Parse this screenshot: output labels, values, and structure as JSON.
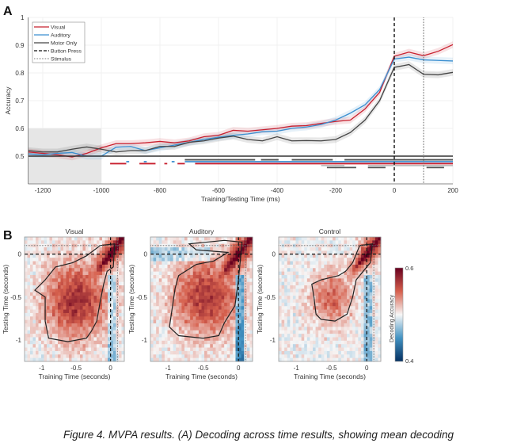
{
  "panel_a": {
    "label": "A",
    "chart_data": {
      "type": "line",
      "xlabel": "Training/Testing Time (ms)",
      "ylabel": "Accuracy",
      "xlim": [
        -1250,
        200
      ],
      "ylim": [
        0.4,
        1.0
      ],
      "xticks": [
        -1200,
        -1000,
        -800,
        -600,
        -400,
        -200,
        0,
        200
      ],
      "yticks": [
        0.5,
        0.6,
        0.7,
        0.8,
        0.9,
        1
      ],
      "ytick_labels": [
        "0.5",
        "0.6",
        "0.7",
        "0.8",
        "0.9",
        "1"
      ],
      "grid": true,
      "legend_position": "top-left",
      "chance_level": 0.5,
      "baseline_shaded": {
        "x": [
          -1250,
          -1000
        ],
        "y": [
          0.4,
          0.6
        ],
        "color": "#e6e6e6"
      },
      "vlines": [
        {
          "name": "Button Press",
          "x": 0,
          "style": "dashed"
        },
        {
          "name": "Stimulus",
          "x": 100,
          "style": "dotted"
        }
      ],
      "x": [
        -1250,
        -1200,
        -1150,
        -1100,
        -1050,
        -1000,
        -950,
        -900,
        -850,
        -800,
        -750,
        -700,
        -650,
        -600,
        -550,
        -500,
        -450,
        -400,
        -350,
        -300,
        -250,
        -200,
        -150,
        -100,
        -50,
        0,
        50,
        100,
        150,
        200
      ],
      "series": [
        {
          "name": "Visual",
          "color": "#c8202f",
          "values": [
            0.515,
            0.51,
            0.505,
            0.497,
            0.51,
            0.53,
            0.545,
            0.545,
            0.548,
            0.553,
            0.548,
            0.555,
            0.57,
            0.575,
            0.593,
            0.59,
            0.595,
            0.6,
            0.608,
            0.61,
            0.618,
            0.625,
            0.63,
            0.67,
            0.73,
            0.86,
            0.875,
            0.862,
            0.878,
            0.902
          ]
        },
        {
          "name": "Auditory",
          "color": "#3b8fd0",
          "values": [
            0.508,
            0.505,
            0.51,
            0.513,
            0.5,
            0.5,
            0.532,
            0.535,
            0.52,
            0.53,
            0.54,
            0.55,
            0.56,
            0.568,
            0.575,
            0.58,
            0.588,
            0.59,
            0.6,
            0.605,
            0.614,
            0.63,
            0.655,
            0.685,
            0.74,
            0.85,
            0.857,
            0.847,
            0.845,
            0.843
          ]
        },
        {
          "name": "Motor Only",
          "color": "#444444",
          "values": [
            0.52,
            0.515,
            0.515,
            0.525,
            0.533,
            0.525,
            0.515,
            0.52,
            0.52,
            0.535,
            0.535,
            0.55,
            0.555,
            0.565,
            0.572,
            0.56,
            0.555,
            0.57,
            0.555,
            0.556,
            0.555,
            0.56,
            0.585,
            0.63,
            0.7,
            0.82,
            0.83,
            0.795,
            0.793,
            0.802
          ]
        }
      ],
      "legend": [
        {
          "label": "Visual",
          "style": "solid",
          "color": "#c8202f"
        },
        {
          "label": "Auditory",
          "style": "solid",
          "color": "#3b8fd0"
        },
        {
          "label": "Motor Only",
          "style": "solid",
          "color": "#444444"
        },
        {
          "label": "Button Press",
          "style": "dashed",
          "color": "#111111"
        },
        {
          "label": "Stimulus",
          "style": "dotted",
          "color": "#777777"
        }
      ],
      "significance_bars": [
        {
          "color": "#555555",
          "level": 0.487,
          "segments": [
            [
              -715,
              -475
            ],
            [
              -455,
              -395
            ],
            [
              -350,
              -210
            ],
            [
              -170,
              200
            ]
          ]
        },
        {
          "color": "#3b8fd0",
          "level": 0.48,
          "segments": [
            [
              -915,
              -905
            ],
            [
              -855,
              -845
            ],
            [
              -760,
              -750
            ],
            [
              -715,
              200
            ]
          ]
        },
        {
          "color": "#c8202f",
          "level": 0.473,
          "segments": [
            [
              -970,
              -915
            ],
            [
              -870,
              -815
            ],
            [
              -785,
              -775
            ],
            [
              -740,
              -715
            ],
            [
              -680,
              200
            ]
          ]
        },
        {
          "color": "#bbbbbb",
          "level": 0.466,
          "segments": [
            [
              -250,
              -170
            ],
            [
              -90,
              200
            ]
          ]
        },
        {
          "color": "#555555",
          "level": 0.459,
          "segments": [
            [
              -230,
              -130
            ],
            [
              -90,
              -30
            ],
            [
              110,
              170
            ]
          ]
        }
      ]
    }
  },
  "panel_b": {
    "label": "B",
    "chart_data": [
      {
        "type": "heatmap",
        "title": "Visual",
        "xlabel": "Training Time (seconds)",
        "ylabel": "Testing Time (seconds)",
        "xlim": [
          -1.25,
          0.2
        ],
        "ylim": [
          -1.25,
          0.2
        ],
        "xticks": [
          -1,
          -0.5,
          0
        ],
        "xtick_labels": [
          "-1",
          "-0.5",
          "0"
        ],
        "yticks": [
          0,
          -0.5,
          -1
        ],
        "ytick_labels": [
          "0",
          "-0.5",
          "-1"
        ],
        "blob": {
          "center": [
            -0.5,
            -0.55
          ],
          "radius": [
            0.42,
            0.42
          ],
          "strength": 0.075
        },
        "contour": [
          [
            -1.1,
            -0.42
          ],
          [
            -0.95,
            -0.3
          ],
          [
            -0.8,
            -0.15
          ],
          [
            -0.55,
            -0.1
          ],
          [
            -0.35,
            -0.02
          ],
          [
            -0.15,
            0.1
          ],
          [
            0.06,
            0.12
          ],
          [
            0.04,
            -0.15
          ],
          [
            -0.05,
            -0.2
          ],
          [
            -0.1,
            -0.35
          ],
          [
            -0.15,
            -0.55
          ],
          [
            -0.2,
            -0.78
          ],
          [
            -0.28,
            -0.9
          ],
          [
            -0.35,
            -0.98
          ],
          [
            -0.62,
            -1.02
          ],
          [
            -0.9,
            -0.98
          ],
          [
            -0.95,
            -0.78
          ],
          [
            -0.95,
            -0.5
          ]
        ]
      },
      {
        "type": "heatmap",
        "title": "Auditory",
        "xlabel": "Training Time (seconds)",
        "ylabel": "Testing Time (seconds)",
        "xlim": [
          -1.25,
          0.2
        ],
        "ylim": [
          -1.25,
          0.2
        ],
        "xticks": [
          -1,
          -0.5,
          0
        ],
        "xtick_labels": [
          "-1",
          "-0.5",
          "0"
        ],
        "yticks": [
          0,
          -0.5,
          -1
        ],
        "ytick_labels": [
          "0",
          "-0.5",
          "-1"
        ],
        "blob": {
          "center": [
            -0.45,
            -0.5
          ],
          "radius": [
            0.45,
            0.42
          ],
          "strength": 0.07
        },
        "contour": [
          [
            -0.98,
            -0.85
          ],
          [
            -0.9,
            -0.4
          ],
          [
            -0.85,
            -0.25
          ],
          [
            -0.6,
            -0.12
          ],
          [
            -0.35,
            -0.08
          ],
          [
            -0.15,
            0.02
          ],
          [
            -0.6,
            0.05
          ],
          [
            -0.7,
            0.12
          ],
          [
            -0.2,
            0.16
          ],
          [
            0.05,
            0.14
          ],
          [
            0.0,
            -0.3
          ],
          [
            -0.05,
            -0.6
          ],
          [
            -0.2,
            -0.8
          ],
          [
            -0.28,
            -0.95
          ],
          [
            -0.5,
            -0.98
          ],
          [
            -0.85,
            -0.95
          ]
        ]
      },
      {
        "type": "heatmap",
        "title": "Control",
        "xlabel": "Training Time (seconds)",
        "ylabel": "Testing Time (seconds)",
        "xlim": [
          -1.25,
          0.2
        ],
        "ylim": [
          -1.25,
          0.2
        ],
        "xticks": [
          -1,
          -0.5,
          0
        ],
        "xtick_labels": [
          "-1",
          "-0.5",
          "0"
        ],
        "yticks": [
          0,
          -0.5,
          -1
        ],
        "ytick_labels": [
          "0",
          "-0.5",
          "-1"
        ],
        "blob": {
          "center": [
            -0.5,
            -0.5
          ],
          "radius": [
            0.28,
            0.28
          ],
          "strength": 0.05
        },
        "contour": [
          [
            -0.78,
            -0.35
          ],
          [
            -0.65,
            -0.3
          ],
          [
            -0.4,
            -0.25
          ],
          [
            -0.3,
            -0.2
          ],
          [
            -0.2,
            -0.1
          ],
          [
            -0.1,
            0.1
          ],
          [
            0.08,
            0.12
          ],
          [
            0.05,
            -0.1
          ],
          [
            -0.05,
            -0.2
          ],
          [
            -0.15,
            -0.3
          ],
          [
            -0.2,
            -0.5
          ],
          [
            -0.28,
            -0.7
          ],
          [
            -0.45,
            -0.78
          ],
          [
            -0.65,
            -0.76
          ],
          [
            -0.72,
            -0.7
          ],
          [
            -0.75,
            -0.5
          ]
        ]
      }
    ],
    "colorbar": {
      "label": "Decoding Accuracy",
      "min": 0.4,
      "max": 0.6,
      "min_label": "0.4",
      "max_label": "0.6",
      "colors": [
        "#053061",
        "#4393c3",
        "#f7f7f7",
        "#d6604d",
        "#67001f"
      ]
    }
  },
  "caption": "Figure 4. MVPA results. (A) Decoding across time results, showing mean decoding"
}
